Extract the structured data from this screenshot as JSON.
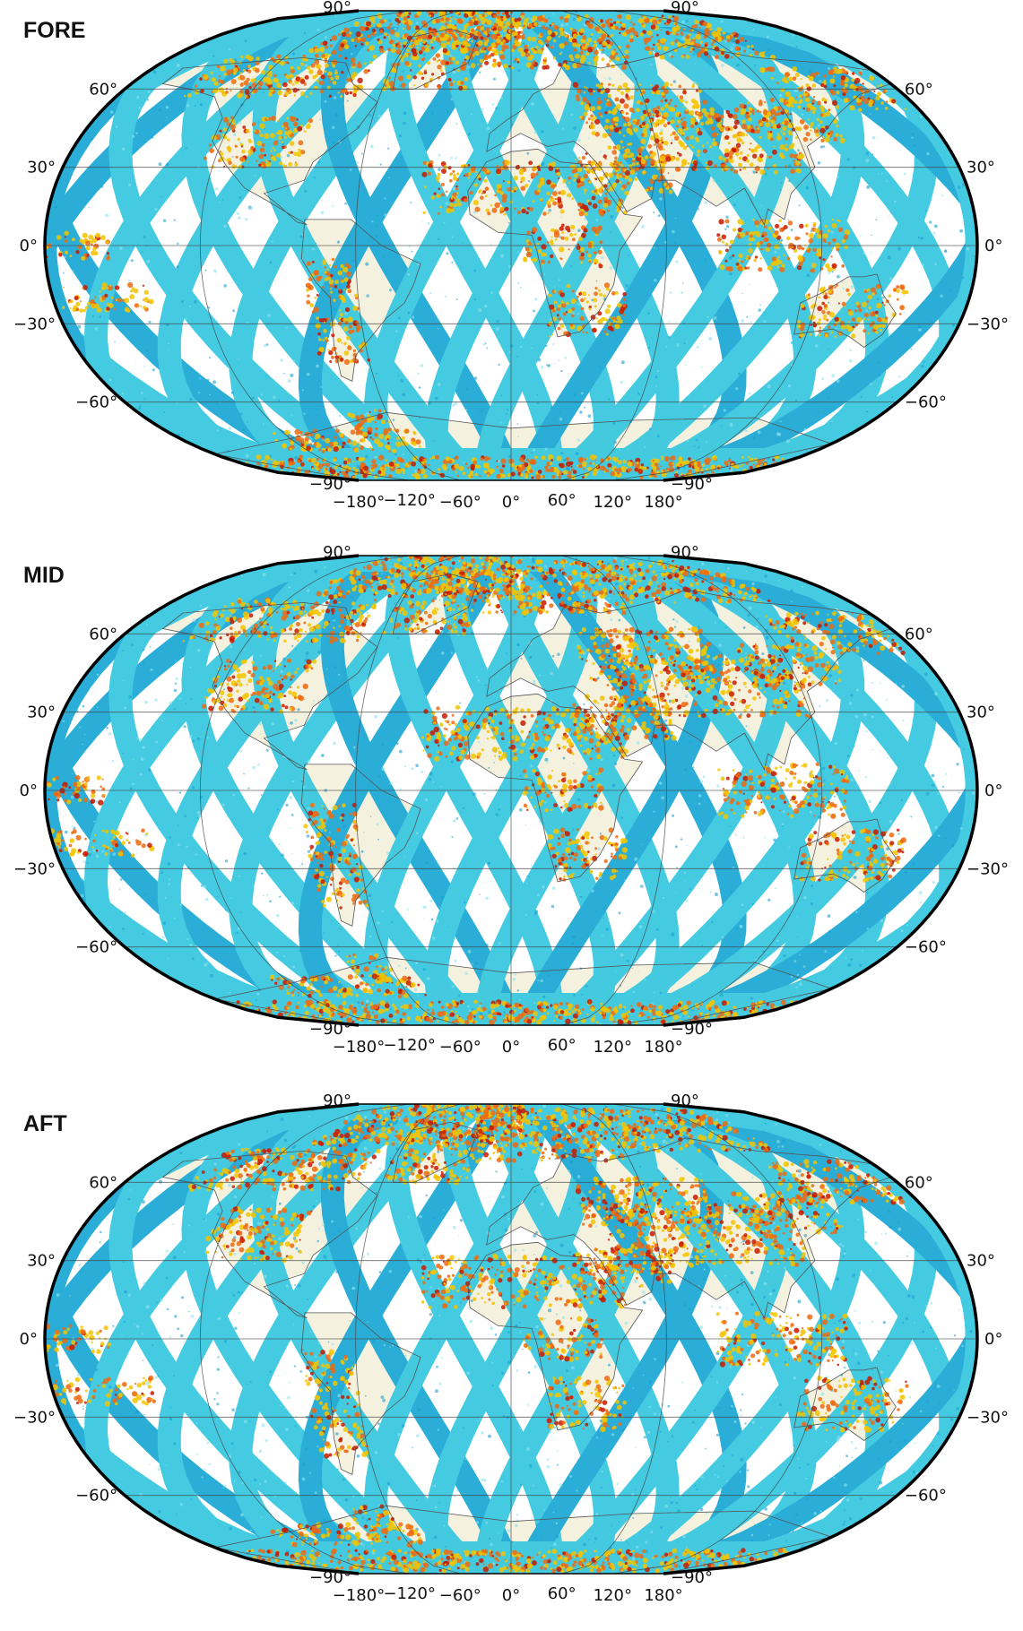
{
  "panels": [
    {
      "title": "FORE"
    },
    {
      "title": "MID"
    },
    {
      "title": "AFT"
    }
  ],
  "map": {
    "projection": "winkel-tripel-like",
    "lat_ticks": [
      90,
      60,
      30,
      0,
      -30,
      -60,
      -90
    ],
    "lat_tick_labels": [
      "90°",
      "60°",
      "30°",
      "0°",
      "−30°",
      "−60°",
      "−90°"
    ],
    "lon_ticks": [
      -180,
      -120,
      -60,
      0,
      60,
      120,
      180
    ],
    "lon_tick_labels": [
      "−180°",
      "−120°",
      "−60°",
      "0°",
      "60°",
      "120°",
      "180°"
    ],
    "colors": {
      "swath": "#36c8e0",
      "swath_dark": "#1aa8d6",
      "land": "#f4f1df",
      "high_low": "#f3c400",
      "high_mid": "#ee6a10",
      "high_max": "#c81a00",
      "grid": "#444444"
    }
  }
}
